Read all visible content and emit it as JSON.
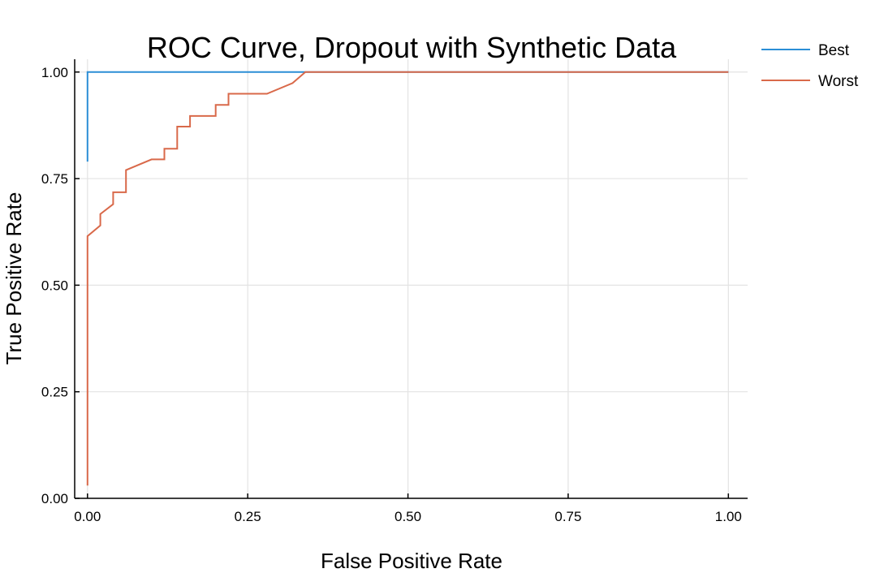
{
  "chart_data": {
    "type": "line",
    "title": "ROC Curve, Dropout with Synthetic Data",
    "xlabel": "False Positive Rate",
    "ylabel": "True Positive Rate",
    "xlim": [
      -0.02,
      1.03
    ],
    "ylim": [
      0,
      1.03
    ],
    "xticks": [
      0.0,
      0.25,
      0.5,
      0.75,
      1.0
    ],
    "xtick_labels": [
      "0.00",
      "0.25",
      "0.50",
      "0.75",
      "1.00"
    ],
    "yticks": [
      0.0,
      0.25,
      0.5,
      0.75,
      1.0
    ],
    "ytick_labels": [
      "0.00",
      "0.25",
      "0.50",
      "0.75",
      "1.00"
    ],
    "grid": true,
    "legend_position": "outside-top-right",
    "series": [
      {
        "name": "Best",
        "color": "#2b8ed6",
        "x": [
          0.0,
          0.0,
          0.0,
          1.0
        ],
        "y": [
          0.79,
          0.79,
          1.0,
          1.0
        ]
      },
      {
        "name": "Worst",
        "color": "#d9694a",
        "x": [
          0.0,
          0.0,
          0.02,
          0.02,
          0.04,
          0.04,
          0.06,
          0.06,
          0.1,
          0.12,
          0.12,
          0.14,
          0.14,
          0.16,
          0.16,
          0.2,
          0.2,
          0.22,
          0.22,
          0.28,
          0.32,
          0.34,
          0.36,
          1.0
        ],
        "y": [
          0.03,
          0.615,
          0.64,
          0.667,
          0.69,
          0.718,
          0.718,
          0.77,
          0.795,
          0.795,
          0.82,
          0.82,
          0.872,
          0.872,
          0.897,
          0.897,
          0.923,
          0.923,
          0.949,
          0.949,
          0.974,
          1.0,
          1.0,
          1.0
        ]
      }
    ]
  }
}
